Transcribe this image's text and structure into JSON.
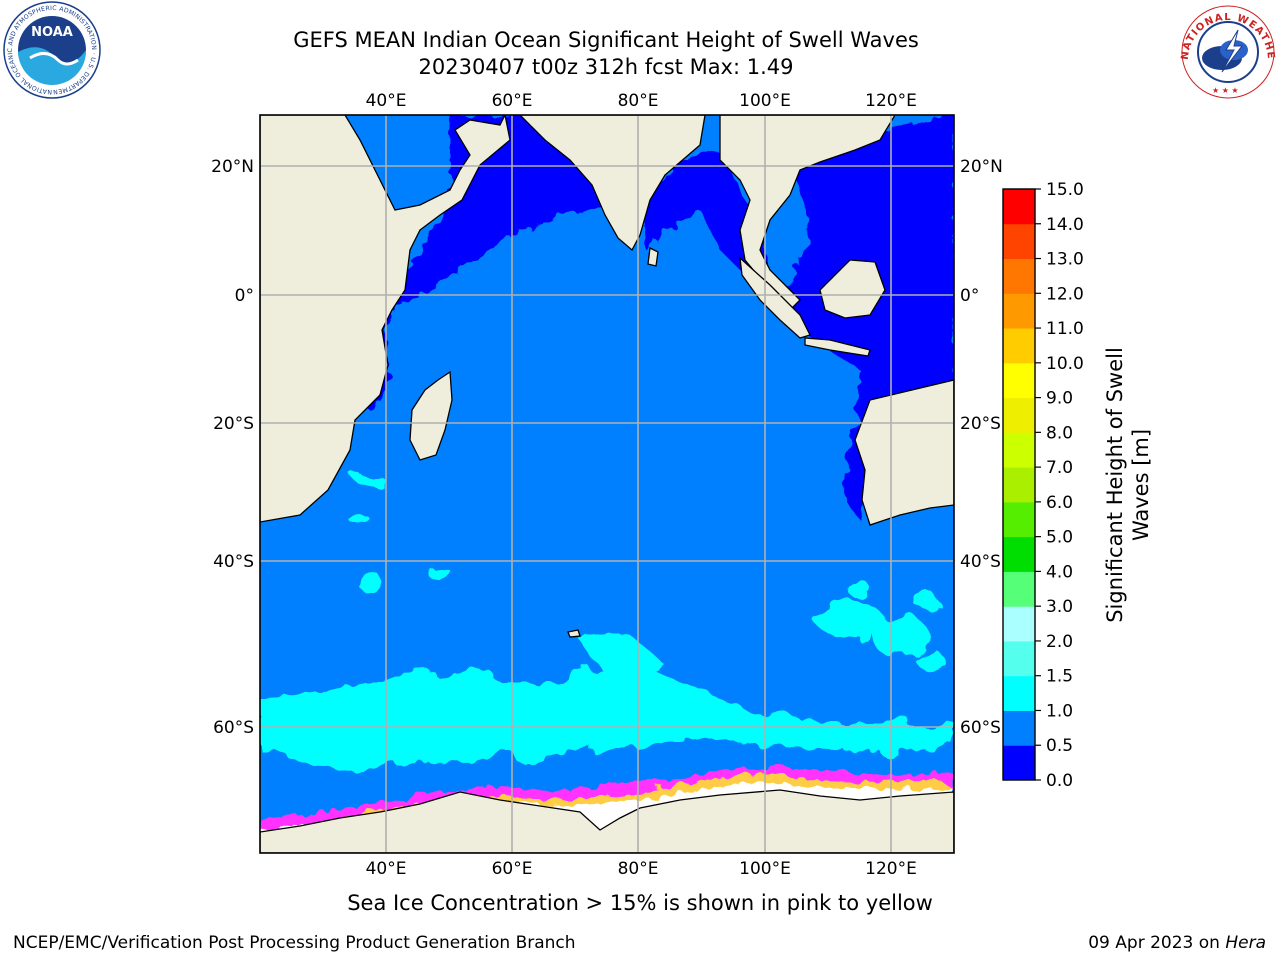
{
  "title_line1": "GEFS MEAN Indian Ocean Significant Height of Swell Waves",
  "title_line2": "20230407 t00z 312h fcst   Max: 1.49",
  "map": {
    "lon_ticks": [
      "40°E",
      "60°E",
      "80°E",
      "100°E",
      "120°E"
    ],
    "lat_ticks": [
      "20°N",
      "0°",
      "20°S",
      "40°S",
      "60°S"
    ],
    "lon_range": [
      20,
      130
    ],
    "lat_range": [
      -75,
      28
    ],
    "colors": {
      "land": "#efeedd",
      "swell_0_0p5": "#0000ff",
      "swell_0p5_1": "#0080ff",
      "swell_1_1p5": "#00ffff",
      "ice_pink": "#ff33ff",
      "ice_yellow": "#ffcc44",
      "grid": "#b0b0b0"
    }
  },
  "colorbar": {
    "label_line1": "Significant Height of Swell",
    "label_line2": "Waves [m]",
    "ticks": [
      "0.0",
      "0.5",
      "1.0",
      "1.5",
      "2.0",
      "3.0",
      "4.0",
      "5.0",
      "6.0",
      "7.0",
      "8.0",
      "9.0",
      "10.0",
      "11.0",
      "12.0",
      "13.0",
      "14.0",
      "15.0"
    ],
    "colors": [
      "#0000ff",
      "#0080ff",
      "#00ffff",
      "#55ffee",
      "#aaffff",
      "#55ff77",
      "#00dd00",
      "#55ee00",
      "#aaee00",
      "#ccff00",
      "#eeee00",
      "#ffff00",
      "#ffcc00",
      "#ff9900",
      "#ff7700",
      "#ff4400",
      "#ff0000"
    ]
  },
  "ice_note": "Sea Ice Concentration > 15% is shown in pink to yellow",
  "footer": {
    "left": "NCEP/EMC/Verification Post Processing Product Generation Branch",
    "date": "09 Apr 2023 on ",
    "host": "Hera"
  },
  "logos": {
    "noaa": "NOAA",
    "noaa_ring": "NATIONAL OCEANIC AND ATMOSPHERIC ADMINISTRATION · U.S. DEPARTMENT OF COMMERCE",
    "nws_ring": "NATIONAL WEATHER SERVICE"
  }
}
